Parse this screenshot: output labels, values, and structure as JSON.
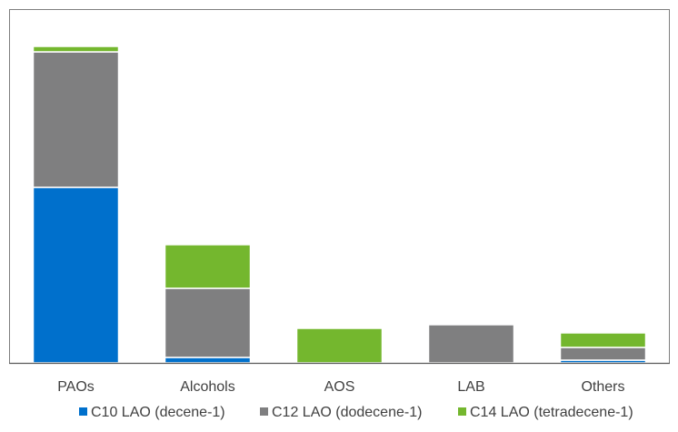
{
  "chart_data": {
    "type": "bar",
    "stacked": true,
    "categories": [
      "PAOs",
      "Alcohols",
      "AOS",
      "LAB",
      "Others"
    ],
    "series": [
      {
        "name": "C10 LAO (decene-1)",
        "color": "#0070cc",
        "values": [
          193,
          6,
          0,
          0,
          3
        ]
      },
      {
        "name": "C12 LAO (dodecene-1)",
        "color": "#7f7f80",
        "values": [
          149,
          76,
          0,
          42,
          14
        ]
      },
      {
        "name": "C14 LAO (tetradecene-1)",
        "color": "#74b72e",
        "values": [
          6,
          48,
          38,
          0,
          16
        ]
      }
    ],
    "ylim": [
      0,
      360
    ],
    "grid": false,
    "legend": "bottom"
  }
}
